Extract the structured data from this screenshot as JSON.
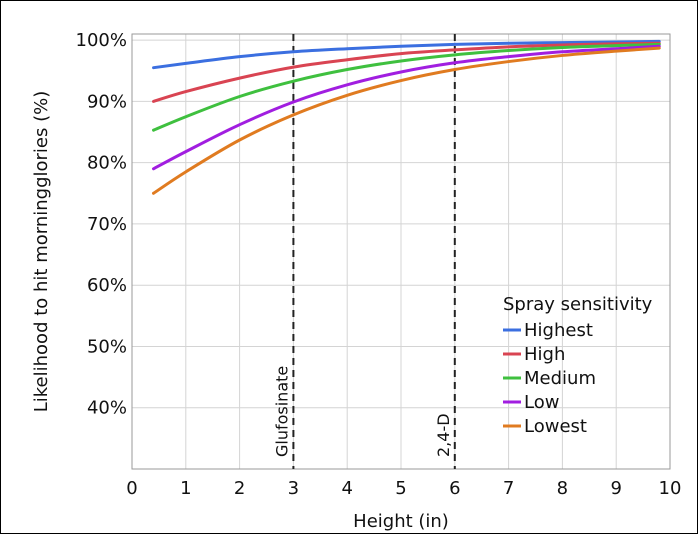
{
  "chart_data": {
    "type": "line",
    "title": "",
    "xlabel": "Height (in)",
    "ylabel": "Likelihood to hit morningglories (%)",
    "xlim": [
      0,
      10
    ],
    "ylim": [
      30,
      101
    ],
    "x_ticks": [
      "0",
      "1",
      "2",
      "3",
      "4",
      "5",
      "6",
      "7",
      "8",
      "9",
      "10"
    ],
    "y_ticks": [
      {
        "value": 40,
        "label": "40%"
      },
      {
        "value": 50,
        "label": "50%"
      },
      {
        "value": 60,
        "label": "60%"
      },
      {
        "value": 70,
        "label": "70%"
      },
      {
        "value": 80,
        "label": "80%"
      },
      {
        "value": 90,
        "label": "90%"
      },
      {
        "value": 100,
        "label": "100%"
      }
    ],
    "grid": true,
    "legend": {
      "title": "Spray sensitivity",
      "position": "bottom-right"
    },
    "x": [
      0.4,
      1,
      2,
      3,
      4,
      5,
      6,
      7,
      8,
      9,
      9.8
    ],
    "series": [
      {
        "name": "Highest",
        "color": "#3b6fe0",
        "values": [
          95.5,
          96.2,
          97.3,
          98.1,
          98.6,
          99.0,
          99.3,
          99.5,
          99.6,
          99.7,
          99.8
        ]
      },
      {
        "name": "High",
        "color": "#d94452",
        "values": [
          90.0,
          91.6,
          93.8,
          95.6,
          96.8,
          97.8,
          98.4,
          98.9,
          99.2,
          99.4,
          99.5
        ]
      },
      {
        "name": "Medium",
        "color": "#3fc03f",
        "values": [
          85.3,
          87.5,
          90.8,
          93.3,
          95.2,
          96.6,
          97.6,
          98.3,
          98.8,
          99.1,
          99.3
        ]
      },
      {
        "name": "Low",
        "color": "#a11ee0",
        "values": [
          79.0,
          81.8,
          86.2,
          89.9,
          92.7,
          94.8,
          96.3,
          97.3,
          98.1,
          98.6,
          99.0
        ]
      },
      {
        "name": "Lowest",
        "color": "#e07b20",
        "values": [
          75.0,
          78.5,
          83.7,
          87.8,
          91.0,
          93.4,
          95.2,
          96.5,
          97.5,
          98.2,
          98.7
        ]
      }
    ],
    "reference_lines": [
      {
        "x": 3,
        "label": "Glufosinate"
      },
      {
        "x": 6,
        "label": "2,4-D"
      }
    ]
  }
}
